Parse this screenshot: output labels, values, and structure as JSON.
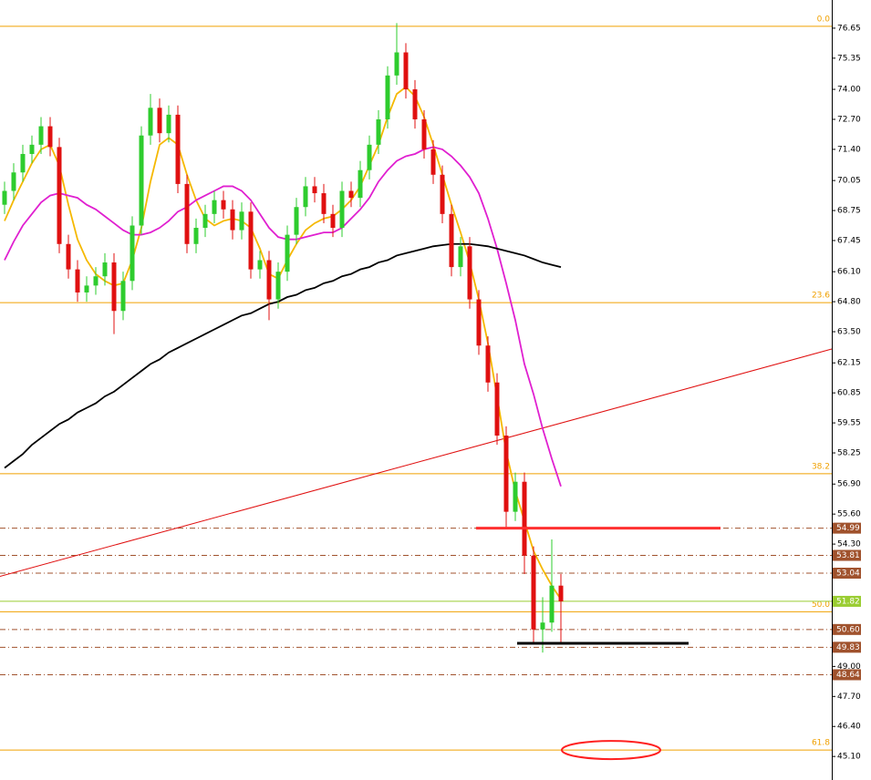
{
  "chart_data": {
    "type": "candlestick",
    "ylim": [
      44.08,
      77.87
    ],
    "yticks": [
      76.65,
      75.35,
      {
        "value": 74.0,
        "label": "74.00"
      },
      {
        "value": 72.7,
        "label": "72.70"
      },
      {
        "value": 71.4,
        "label": "71.40"
      },
      70.05,
      68.75,
      67.45,
      {
        "value": 66.1,
        "label": "66.10"
      },
      {
        "value": 64.8,
        "label": "64.80"
      },
      {
        "value": 63.5,
        "label": "63.50"
      },
      62.15,
      60.85,
      59.55,
      58.25,
      {
        "value": 56.9,
        "label": "56.90"
      },
      {
        "value": 55.6,
        "label": "55.60"
      },
      {
        "value": 54.3,
        "label": "54.30"
      },
      {
        "value": 49.0,
        "label": "49.00"
      },
      {
        "value": 47.7,
        "label": "47.70"
      },
      {
        "value": 46.4,
        "label": "46.40"
      },
      {
        "value": 45.1,
        "label": "45.10"
      }
    ],
    "up_color": "#2ecc2e",
    "down_color": "#e01010",
    "open": [
      69.0,
      69.6,
      70.4,
      71.2,
      71.6,
      72.4,
      71.5,
      67.3,
      66.2,
      65.2,
      65.5,
      65.9,
      66.5,
      64.4,
      65.7,
      68.1,
      72.0,
      73.2,
      72.1,
      72.9,
      69.9,
      67.3,
      68.0,
      68.6,
      69.2,
      68.8,
      67.9,
      68.7,
      66.2,
      66.6,
      64.9,
      66.1,
      67.7,
      68.9,
      69.8,
      69.5,
      68.6,
      68.0,
      69.6,
      69.3,
      70.5,
      71.6,
      72.7,
      74.6,
      75.6,
      74.0,
      72.7,
      71.4,
      70.3,
      68.6,
      66.3,
      67.2,
      64.9,
      62.9,
      61.3,
      59.0,
      55.7,
      57.0,
      53.8,
      50.6,
      50.9,
      52.5
    ],
    "high": [
      70.0,
      70.8,
      71.6,
      72.0,
      72.8,
      72.8,
      71.9,
      67.7,
      66.6,
      65.9,
      66.3,
      66.9,
      66.9,
      66.1,
      68.5,
      72.4,
      73.8,
      73.6,
      73.3,
      73.3,
      70.3,
      68.4,
      69.0,
      69.6,
      69.6,
      69.2,
      69.1,
      69.1,
      67.0,
      67.0,
      66.5,
      68.1,
      69.3,
      70.2,
      70.2,
      69.9,
      69.0,
      70.0,
      70.0,
      70.9,
      72.0,
      73.1,
      75.0,
      76.87,
      76.0,
      74.4,
      73.1,
      71.8,
      70.7,
      69.0,
      67.6,
      67.6,
      65.3,
      63.3,
      61.7,
      59.4,
      57.4,
      57.4,
      54.2,
      52.0,
      54.5,
      53.0
    ],
    "low": [
      68.6,
      69.2,
      70.0,
      70.8,
      71.2,
      71.1,
      66.9,
      65.8,
      64.8,
      64.8,
      65.1,
      65.5,
      63.4,
      64.0,
      65.3,
      67.7,
      71.6,
      71.7,
      71.7,
      69.5,
      66.9,
      66.9,
      67.6,
      68.2,
      68.4,
      67.5,
      67.5,
      65.8,
      65.8,
      64.0,
      64.5,
      65.7,
      67.3,
      68.5,
      69.1,
      68.2,
      67.6,
      67.6,
      68.9,
      68.9,
      70.1,
      71.2,
      72.3,
      74.2,
      73.6,
      72.3,
      71.0,
      69.9,
      68.2,
      65.9,
      65.9,
      64.5,
      62.5,
      60.9,
      58.6,
      55.0,
      55.3,
      53.0,
      50.0,
      49.6,
      50.5,
      50.0
    ],
    "close": [
      69.6,
      70.4,
      71.2,
      71.6,
      72.4,
      71.5,
      67.3,
      66.2,
      65.2,
      65.5,
      65.9,
      66.5,
      64.4,
      65.7,
      68.1,
      72.0,
      73.2,
      72.1,
      72.9,
      69.9,
      67.3,
      68.0,
      68.6,
      69.2,
      68.8,
      67.9,
      68.7,
      66.2,
      66.6,
      64.9,
      66.1,
      67.7,
      68.9,
      69.8,
      69.5,
      68.6,
      68.0,
      69.6,
      69.3,
      70.5,
      71.6,
      72.7,
      74.6,
      75.6,
      74.0,
      72.7,
      71.4,
      70.3,
      68.6,
      66.3,
      67.2,
      64.9,
      62.9,
      61.3,
      59.0,
      55.7,
      57.0,
      53.8,
      50.6,
      50.9,
      52.5,
      51.82
    ],
    "moving_averages": [
      {
        "color": "#f5b800",
        "values": [
          68.3,
          69.2,
          70.0,
          70.8,
          71.4,
          71.6,
          70.7,
          69.0,
          67.5,
          66.6,
          66.0,
          65.7,
          65.5,
          65.6,
          66.6,
          68.0,
          70.0,
          71.6,
          71.9,
          71.6,
          70.3,
          69.2,
          68.4,
          68.1,
          68.3,
          68.4,
          68.3,
          68.0,
          67.1,
          66.0,
          65.8,
          66.6,
          67.3,
          67.9,
          68.2,
          68.4,
          68.5,
          68.8,
          69.2,
          69.8,
          70.7,
          71.6,
          72.8,
          73.8,
          74.1,
          73.7,
          72.8,
          71.6,
          70.3,
          69.0,
          67.8,
          66.5,
          64.9,
          63.0,
          60.7,
          58.3,
          56.6,
          55.3,
          54.0,
          53.2,
          52.5,
          51.9
        ]
      },
      {
        "color": "#e020d0",
        "values": [
          66.6,
          67.4,
          68.1,
          68.6,
          69.1,
          69.4,
          69.5,
          69.4,
          69.3,
          69.0,
          68.8,
          68.5,
          68.2,
          67.9,
          67.7,
          67.7,
          67.8,
          68.0,
          68.3,
          68.7,
          68.9,
          69.2,
          69.4,
          69.6,
          69.8,
          69.8,
          69.6,
          69.2,
          68.6,
          68.0,
          67.6,
          67.5,
          67.5,
          67.6,
          67.7,
          67.8,
          67.8,
          68.0,
          68.4,
          68.8,
          69.3,
          70.0,
          70.5,
          70.9,
          71.1,
          71.2,
          71.4,
          71.5,
          71.4,
          71.1,
          70.7,
          70.2,
          69.5,
          68.4,
          67.1,
          65.6,
          64.0,
          62.1,
          60.8,
          59.3,
          58.0,
          56.8
        ]
      },
      {
        "color": "#000000",
        "values": [
          57.6,
          57.9,
          58.2,
          58.6,
          58.9,
          59.2,
          59.5,
          59.7,
          60.0,
          60.2,
          60.4,
          60.7,
          60.9,
          61.2,
          61.5,
          61.8,
          62.1,
          62.3,
          62.6,
          62.8,
          63.0,
          63.2,
          63.4,
          63.6,
          63.8,
          64.0,
          64.2,
          64.3,
          64.5,
          64.7,
          64.8,
          65.0,
          65.1,
          65.3,
          65.4,
          65.6,
          65.7,
          65.9,
          66.0,
          66.2,
          66.3,
          66.5,
          66.6,
          66.8,
          66.9,
          67.0,
          67.1,
          67.2,
          67.25,
          67.3,
          67.3,
          67.3,
          67.25,
          67.2,
          67.1,
          67.0,
          66.9,
          66.8,
          66.65,
          66.5,
          66.4,
          66.3
        ]
      }
    ],
    "fibonacci": {
      "color": "#f0a000",
      "labels": [
        "0.0",
        "23.6",
        "38.2",
        "50.0",
        "61.8"
      ],
      "values": [
        76.73,
        64.76,
        57.35,
        51.37,
        45.38
      ]
    },
    "levels": {
      "color": "#a0522d",
      "values": [
        54.99,
        53.81,
        53.04,
        50.6,
        49.83,
        48.64
      ],
      "value_labels": [
        "54.99",
        "53.81",
        "53.04",
        "50.60",
        "49.83",
        "48.64"
      ]
    },
    "current_price": {
      "color": "#9acd32",
      "value": 51.82
    },
    "trendline": {
      "color": "#e01010",
      "values": [
        52.9,
        62.75
      ]
    },
    "support_line": 50.0
  }
}
